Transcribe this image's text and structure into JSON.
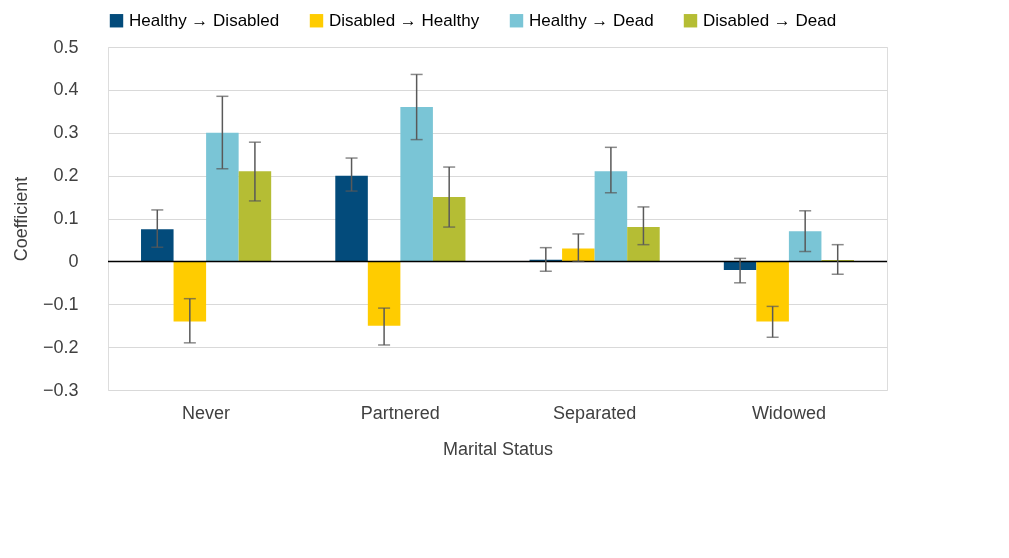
{
  "chart_data": {
    "type": "bar",
    "xlabel": "Marital Status",
    "ylabel": "Coefficient",
    "categories": [
      "Never",
      "Partnered",
      "Separated",
      "Widowed"
    ],
    "series": [
      {
        "name": "Healthy → Disabled",
        "color": "#034b7b",
        "values": [
          0.075,
          0.2,
          0.004,
          -0.02
        ],
        "errors": [
          [
            0.033,
            0.12
          ],
          [
            0.164,
            0.241
          ],
          [
            -0.023,
            0.032
          ],
          [
            -0.05,
            0.007
          ]
        ]
      },
      {
        "name": "Disabled → Healthy",
        "color": "#ffcc00",
        "values": [
          -0.14,
          -0.15,
          0.03,
          -0.14
        ],
        "errors": [
          [
            -0.19,
            -0.087
          ],
          [
            -0.195,
            -0.109
          ],
          [
            0.0,
            0.064
          ],
          [
            -0.177,
            -0.105
          ]
        ]
      },
      {
        "name": "Healthy → Dead",
        "color": "#7ac5d6",
        "values": [
          0.3,
          0.36,
          0.21,
          0.07
        ],
        "errors": [
          [
            0.216,
            0.385
          ],
          [
            0.284,
            0.436
          ],
          [
            0.16,
            0.266
          ],
          [
            0.023,
            0.118
          ]
        ]
      },
      {
        "name": "Disabled → Dead",
        "color": "#b5bd34",
        "values": [
          0.21,
          0.15,
          0.08,
          0.003
        ],
        "errors": [
          [
            0.141,
            0.278
          ],
          [
            0.08,
            0.22
          ],
          [
            0.039,
            0.127
          ],
          [
            -0.03,
            0.039
          ]
        ]
      }
    ],
    "ylim": [
      -0.3,
      0.5
    ],
    "yticks": [
      -0.3,
      -0.2,
      -0.1,
      0,
      0.1,
      0.2,
      0.3,
      0.4,
      0.5
    ],
    "grid": "y",
    "legend": "top"
  }
}
